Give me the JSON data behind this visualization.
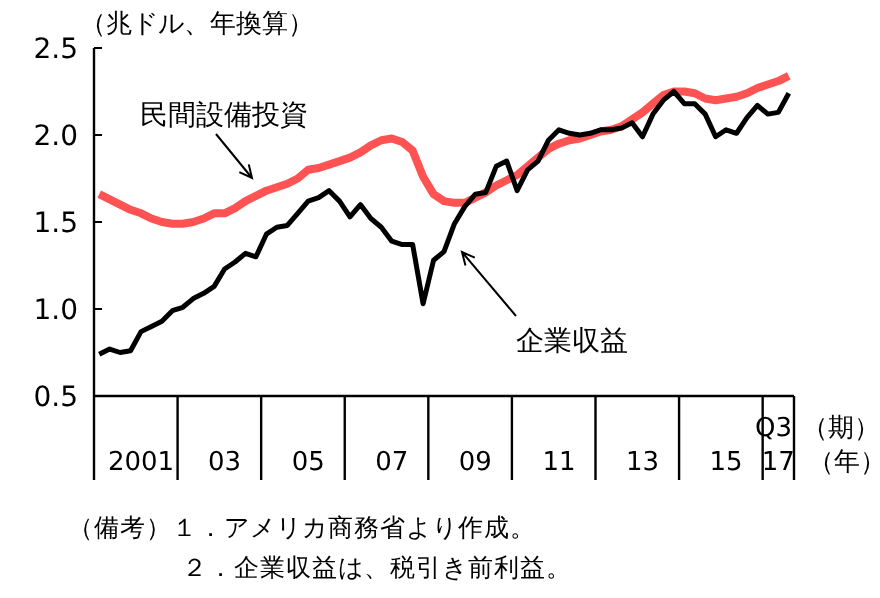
{
  "chart_data": {
    "type": "line",
    "ylabel": "（兆ドル、年換算）",
    "xlabel": "（年）",
    "categories": [
      null,
      null,
      null,
      null,
      "2001",
      null,
      null,
      null,
      null,
      null,
      null,
      null,
      "03",
      null,
      null,
      null,
      null,
      null,
      null,
      null,
      "05",
      null,
      null,
      null,
      null,
      null,
      null,
      null,
      "07",
      null,
      null,
      null,
      null,
      null,
      null,
      null,
      "09",
      null,
      null,
      null,
      null,
      null,
      null,
      null,
      "11",
      null,
      null,
      null,
      null,
      null,
      null,
      null,
      "13",
      null,
      null,
      null,
      null,
      null,
      null,
      null,
      "15",
      null,
      null,
      null,
      null,
      "17",
      null
    ],
    "ylim": [
      0.5,
      2.5
    ],
    "yticks": [
      {
        "value": 0.5,
        "label": "0.5"
      },
      {
        "value": 1,
        "label": "1.0"
      },
      {
        "value": 1.5,
        "label": "1.5"
      },
      {
        "value": 2,
        "label": "2.0"
      },
      {
        "value": 2.5,
        "label": "2.5"
      }
    ],
    "grid": false,
    "marker": "none",
    "line_style": "solid",
    "series": [
      {
        "name": "民間設備投資",
        "color": "#ff4040",
        "values": [
          1.66,
          1.63,
          1.6,
          1.57,
          1.55,
          1.52,
          1.5,
          1.49,
          1.49,
          1.5,
          1.52,
          1.55,
          1.55,
          1.58,
          1.62,
          1.65,
          1.68,
          1.7,
          1.72,
          1.75,
          1.8,
          1.81,
          1.83,
          1.85,
          1.87,
          1.9,
          1.94,
          1.97,
          1.98,
          1.96,
          1.91,
          1.76,
          1.66,
          1.62,
          1.61,
          1.61,
          1.64,
          1.67,
          1.71,
          1.74,
          1.77,
          1.82,
          1.87,
          1.92,
          1.95,
          1.97,
          1.98,
          2,
          2.02,
          2.03,
          2.05,
          2.09,
          2.13,
          2.18,
          2.23,
          2.25,
          2.25,
          2.24,
          2.21,
          2.2,
          2.21,
          2.22,
          2.24,
          2.27,
          2.29,
          2.31,
          2.34
        ]
      },
      {
        "name": "企業収益",
        "color": "#000000",
        "values": [
          0.74,
          0.77,
          0.75,
          0.76,
          0.87,
          0.9,
          0.93,
          0.99,
          1.01,
          1.06,
          1.09,
          1.13,
          1.23,
          1.27,
          1.32,
          1.3,
          1.43,
          1.47,
          1.48,
          1.55,
          1.62,
          1.64,
          1.68,
          1.62,
          1.53,
          1.6,
          1.52,
          1.47,
          1.39,
          1.37,
          1.37,
          1.03,
          1.28,
          1.33,
          1.49,
          1.59,
          1.66,
          1.67,
          1.82,
          1.85,
          1.68,
          1.8,
          1.85,
          1.97,
          2.03,
          2.01,
          2,
          2.01,
          2.03,
          2.03,
          2.04,
          2.07,
          1.99,
          2.12,
          2.2,
          2.25,
          2.18,
          2.18,
          2.12,
          1.99,
          2.03,
          2.01,
          2.1,
          2.17,
          2.12,
          2.13,
          2.24
        ]
      }
    ],
    "annotations": [
      "Q3",
      "（期）",
      "（備考）１．アメリカ商務省より作成。",
      "２．企業収益は、税引き前利益。"
    ]
  }
}
